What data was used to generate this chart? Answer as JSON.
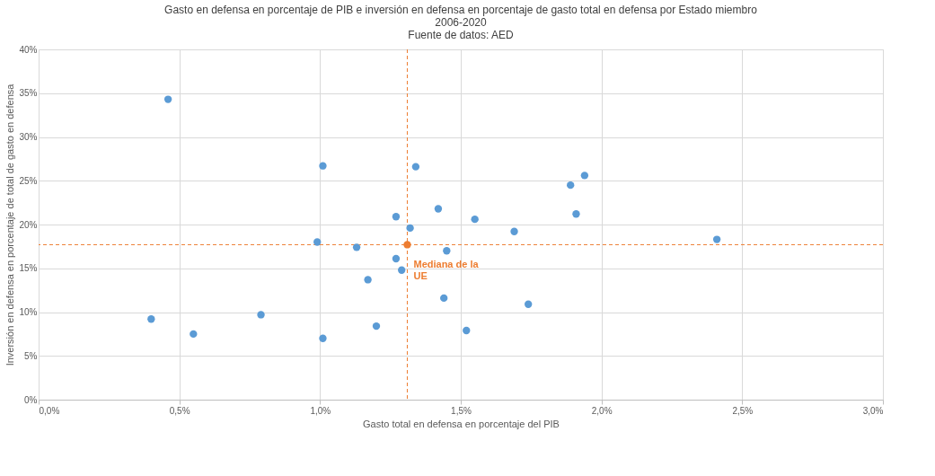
{
  "chart_data": {
    "type": "scatter",
    "title": "Gasto en defensa en porcentaje de PIB e inversión en defensa en porcentaje de gasto total en defensa por Estado miembro",
    "subtitle": "2006-2020",
    "annotations": [
      "Fuente de datos: AED",
      {
        "text": "Mediana de la UE",
        "x": 1.31,
        "y": 17.7
      }
    ],
    "xlabel": "Gasto total en defensa en porcentaje del PIB",
    "ylabel": "Inversión en defensa en porcentaje de total de gasto en defensa",
    "series": [
      {
        "color": "#5b9bd5",
        "x": [
          0.46,
          0.4,
          0.55,
          0.79,
          0.99,
          1.01,
          1.01,
          1.13,
          1.17,
          1.2,
          1.27,
          1.27,
          1.29,
          1.32,
          1.34,
          1.42,
          1.45,
          1.44,
          1.52,
          1.55,
          1.69,
          1.74,
          1.89,
          1.91,
          1.94,
          2.41
        ],
        "values": [
          34.3,
          9.2,
          7.5,
          9.7,
          18.0,
          7.0,
          26.7,
          17.4,
          13.7,
          8.4,
          20.9,
          16.1,
          14.8,
          19.6,
          26.6,
          21.8,
          17.0,
          11.6,
          7.9,
          20.6,
          19.2,
          10.9,
          24.5,
          21.2,
          25.6,
          18.3
        ]
      },
      {
        "color": "#ed7d31",
        "x": [
          1.31
        ],
        "values": [
          17.7
        ]
      }
    ],
    "xlim": [
      0,
      3
    ],
    "ylim": [
      0,
      40
    ],
    "xticks": [
      {
        "value": 0,
        "label": "0,0%"
      },
      {
        "value": 0.5,
        "label": "0,5%"
      },
      {
        "value": 1,
        "label": "1,0%"
      },
      {
        "value": 1.5,
        "label": "1,5%"
      },
      {
        "value": 2,
        "label": "2,0%"
      },
      {
        "value": 2.5,
        "label": "2,5%"
      },
      {
        "value": 3,
        "label": "3,0%"
      }
    ],
    "yticks": [
      {
        "value": 0,
        "label": "0%"
      },
      {
        "value": 5,
        "label": "5%"
      },
      {
        "value": 10,
        "label": "10%"
      },
      {
        "value": 15,
        "label": "15%"
      },
      {
        "value": 20,
        "label": "20%"
      },
      {
        "value": 25,
        "label": "25%"
      },
      {
        "value": 30,
        "label": "30%"
      },
      {
        "value": 35,
        "label": "35%"
      },
      {
        "value": 40,
        "label": "40%"
      }
    ],
    "ref_lines": [
      {
        "axis": "x",
        "value": 1.31,
        "color": "#ed7d31",
        "line_style": "dashed"
      },
      {
        "axis": "y",
        "value": 17.7,
        "color": "#ed7d31",
        "line_style": "dashed"
      }
    ],
    "grid": true,
    "marker": "circle"
  }
}
